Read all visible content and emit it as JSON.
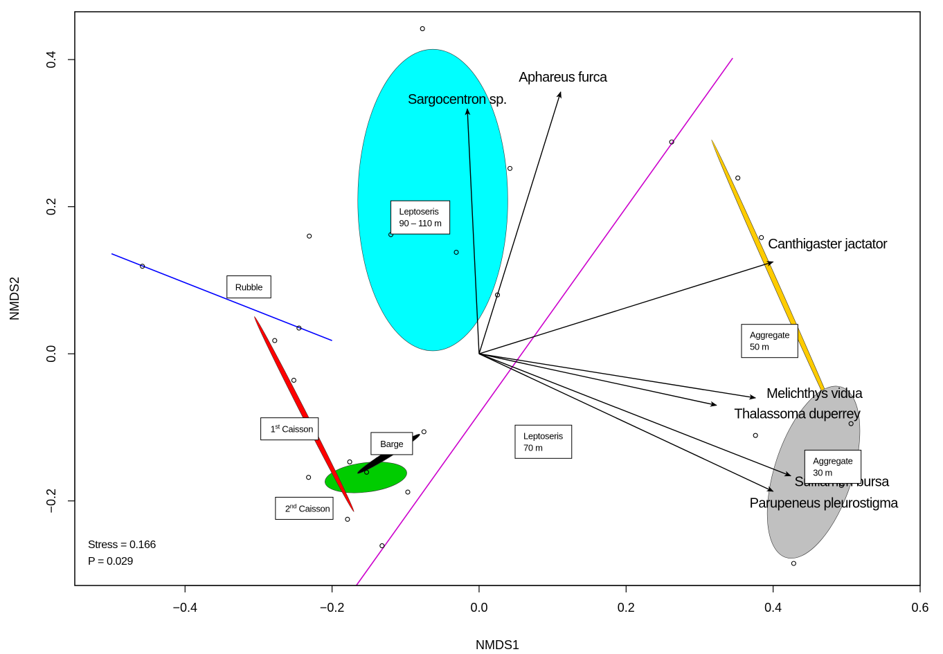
{
  "chart_data": {
    "type": "scatter",
    "title": "",
    "xlabel": "NMDS1",
    "ylabel": "NMDS2",
    "xlim": [
      -0.55,
      0.6
    ],
    "ylim": [
      -0.315,
      0.465
    ],
    "xticks": [
      -0.4,
      -0.2,
      0.0,
      0.2,
      0.4,
      0.6
    ],
    "xtick_labels": [
      "−0.4",
      "−0.2",
      "0.0",
      "0.2",
      "0.4",
      "0.6"
    ],
    "yticks": [
      -0.2,
      0.0,
      0.2,
      0.4
    ],
    "ytick_labels": [
      "−0.2",
      "0.0",
      "0.2",
      "0.4"
    ],
    "grid": false,
    "points": [
      {
        "x": -0.077,
        "y": 0.442
      },
      {
        "x": 0.042,
        "y": 0.252
      },
      {
        "x": -0.12,
        "y": 0.162
      },
      {
        "x": -0.031,
        "y": 0.138
      },
      {
        "x": -0.231,
        "y": 0.16
      },
      {
        "x": -0.458,
        "y": 0.119
      },
      {
        "x": -0.245,
        "y": 0.035
      },
      {
        "x": 0.025,
        "y": 0.08
      },
      {
        "x": 0.262,
        "y": 0.288
      },
      {
        "x": 0.352,
        "y": 0.239
      },
      {
        "x": 0.384,
        "y": 0.158
      },
      {
        "x": 0.506,
        "y": -0.095
      },
      {
        "x": 0.376,
        "y": -0.111
      },
      {
        "x": 0.493,
        "y": -0.179
      },
      {
        "x": 0.428,
        "y": -0.285
      },
      {
        "x": -0.278,
        "y": 0.018
      },
      {
        "x": -0.252,
        "y": -0.036
      },
      {
        "x": -0.075,
        "y": -0.106
      },
      {
        "x": -0.138,
        "y": -0.144
      },
      {
        "x": -0.176,
        "y": -0.147
      },
      {
        "x": -0.153,
        "y": -0.161
      },
      {
        "x": -0.232,
        "y": -0.168
      },
      {
        "x": -0.097,
        "y": -0.188
      },
      {
        "x": -0.179,
        "y": -0.225
      },
      {
        "x": -0.132,
        "y": -0.261
      }
    ],
    "vectors": [
      {
        "label": "Sargocentron sp.",
        "x": -0.016,
        "y": 0.333,
        "label_x": -0.097,
        "label_y": 0.34
      },
      {
        "label": "Aphareus furca",
        "x": 0.111,
        "y": 0.356,
        "label_x": 0.054,
        "label_y": 0.37
      },
      {
        "label": "Canthigaster jactator",
        "x": 0.4,
        "y": 0.125,
        "label_x": 0.393,
        "label_y": 0.143
      },
      {
        "label": "Melichthys vidua",
        "x": 0.376,
        "y": -0.06,
        "label_x": 0.391,
        "label_y": -0.06
      },
      {
        "label": "Thalassoma duperrey",
        "x": 0.323,
        "y": -0.07,
        "label_x": 0.347,
        "label_y": -0.088
      },
      {
        "label": "Sufflamen bursa",
        "x": 0.424,
        "y": -0.166,
        "label_x": 0.429,
        "label_y": -0.18
      },
      {
        "label": "Parupeneus pleurostigma",
        "x": 0.4,
        "y": -0.187,
        "label_x": 0.368,
        "label_y": -0.209
      }
    ],
    "ellipses": [
      {
        "color": "#00ffff",
        "cx": -0.063,
        "cy": 0.209,
        "rx": 0.102,
        "ry": 0.205,
        "angle": 0
      },
      {
        "color": "#00cc00",
        "cx": -0.154,
        "cy": -0.168,
        "rx": 0.056,
        "ry": 0.02,
        "angle": -7
      },
      {
        "color": "#000000",
        "cx": -0.123,
        "cy": -0.136,
        "rx": 0.05,
        "ry": 0.0045,
        "angle": -32
      },
      {
        "color": "#ff0000",
        "cx": -0.238,
        "cy": -0.082,
        "rx": 0.149,
        "ry": 0.0035,
        "angle": 63
      },
      {
        "color": "#ffcc00",
        "cx": 0.405,
        "cy": 0.092,
        "rx": 0.218,
        "ry": 0.0035,
        "angle": 66
      },
      {
        "color": "#c0c0c0",
        "cx": 0.455,
        "cy": -0.161,
        "rx": 0.122,
        "ry": 0.053,
        "angle": -72
      }
    ],
    "lines": [
      {
        "color": "#0000ff",
        "x1": -0.5,
        "y1": 0.136,
        "x2": -0.2,
        "y2": 0.018
      },
      {
        "color": "#cc00cc",
        "x1": -0.167,
        "y1": -0.315,
        "x2": 0.345,
        "y2": 0.402
      }
    ],
    "group_labels": [
      {
        "lines": [
          "Leptoseris",
          "90 – 110 m"
        ],
        "x": -0.12,
        "y": 0.208
      },
      {
        "lines": [
          "Rubble"
        ],
        "x": -0.343,
        "y": 0.106
      },
      {
        "lines": [
          "Aggregate",
          "50 m"
        ],
        "x": 0.357,
        "y": 0.04
      },
      {
        "lines": [
          "1",
          "st",
          " Caisson"
        ],
        "x": -0.297,
        "y": -0.087,
        "superscript": true
      },
      {
        "lines": [
          "Barge"
        ],
        "x": -0.147,
        "y": -0.107
      },
      {
        "lines": [
          "Leptoseris",
          "70 m"
        ],
        "x": 0.049,
        "y": -0.097
      },
      {
        "lines": [
          "Aggregate",
          "30 m"
        ],
        "x": 0.443,
        "y": -0.131
      },
      {
        "lines": [
          "2",
          "nd",
          " Caisson"
        ],
        "x": -0.277,
        "y": -0.195,
        "superscript": true
      }
    ],
    "annotations": [
      "Stress = 0.166",
      "P = 0.029"
    ]
  }
}
